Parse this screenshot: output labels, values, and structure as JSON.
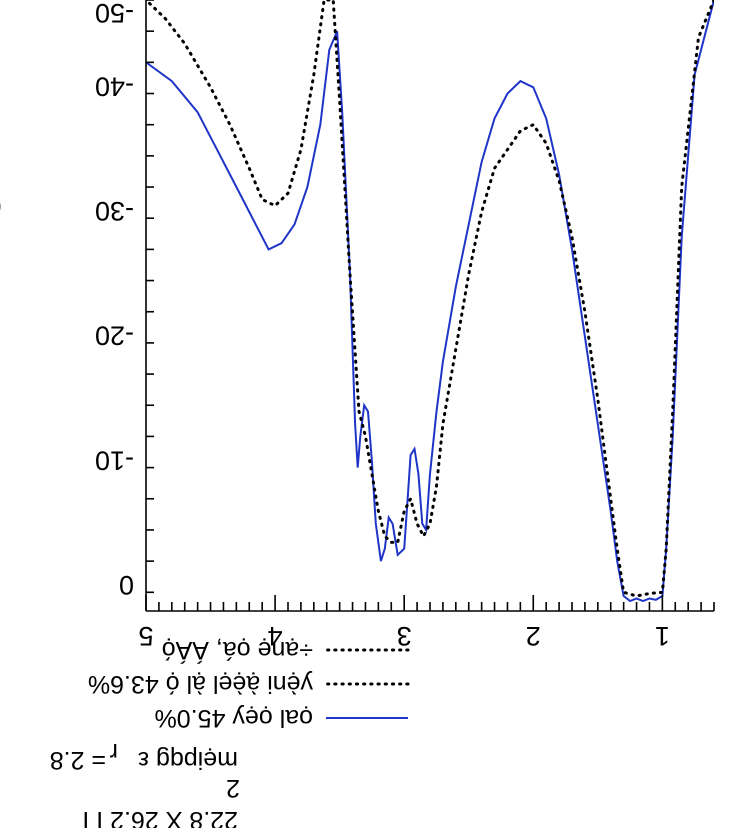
{
  "chart_data": {
    "type": "line",
    "orientation": "rotated 180 degrees",
    "xlim": [
      0.6,
      5
    ],
    "ylim": [
      -47,
      2
    ],
    "x_ticks": [
      1,
      2,
      3,
      4,
      5
    ],
    "x_tick_labels": [
      "1",
      "2",
      "3",
      "4",
      "5"
    ],
    "y_ticks": [
      0,
      -10,
      -20,
      -30,
      -40,
      -50
    ],
    "y_tick_labels": [
      "0",
      "-10",
      "-20",
      "-30",
      "-40",
      "-50"
    ],
    "legend_position": "bottom",
    "series": [
      {
        "name": "ọal ọẹy 45.0%",
        "color": "#1f35c8",
        "style": "solid",
        "points": [
          [
            0.6,
            -47
          ],
          [
            0.75,
            -41
          ],
          [
            0.85,
            -28
          ],
          [
            0.92,
            -12
          ],
          [
            0.97,
            -3
          ],
          [
            1.0,
            0.8
          ],
          [
            1.05,
            1.1
          ],
          [
            1.1,
            1.0
          ],
          [
            1.15,
            1.2
          ],
          [
            1.2,
            1.0
          ],
          [
            1.25,
            1.2
          ],
          [
            1.3,
            0.8
          ],
          [
            1.35,
            -2
          ],
          [
            1.4,
            -6
          ],
          [
            1.5,
            -13
          ],
          [
            1.6,
            -20
          ],
          [
            1.7,
            -27
          ],
          [
            1.8,
            -33
          ],
          [
            1.9,
            -37.5
          ],
          [
            2.0,
            -40
          ],
          [
            2.1,
            -40.5
          ],
          [
            2.2,
            -39.5
          ],
          [
            2.3,
            -37.5
          ],
          [
            2.4,
            -34
          ],
          [
            2.5,
            -29
          ],
          [
            2.6,
            -24
          ],
          [
            2.7,
            -18
          ],
          [
            2.75,
            -14
          ],
          [
            2.8,
            -9
          ],
          [
            2.83,
            -4.5
          ],
          [
            2.86,
            -5
          ],
          [
            2.89,
            -9
          ],
          [
            2.92,
            -11
          ],
          [
            2.95,
            -10.5
          ],
          [
            2.98,
            -6
          ],
          [
            3.0,
            -3
          ],
          [
            3.05,
            -2.5
          ],
          [
            3.09,
            -5
          ],
          [
            3.12,
            -5.5
          ],
          [
            3.15,
            -3
          ],
          [
            3.18,
            -2
          ],
          [
            3.22,
            -5
          ],
          [
            3.25,
            -10
          ],
          [
            3.28,
            -14
          ],
          [
            3.31,
            -14.5
          ],
          [
            3.34,
            -12
          ],
          [
            3.36,
            -9.5
          ],
          [
            3.38,
            -13
          ],
          [
            3.42,
            -25
          ],
          [
            3.48,
            -38
          ],
          [
            3.52,
            -44.5
          ],
          [
            3.58,
            -43
          ],
          [
            3.65,
            -37
          ],
          [
            3.75,
            -32
          ],
          [
            3.85,
            -29
          ],
          [
            3.95,
            -27.5
          ],
          [
            4.05,
            -27
          ],
          [
            4.15,
            -29
          ],
          [
            4.3,
            -32
          ],
          [
            4.45,
            -35
          ],
          [
            4.6,
            -38
          ],
          [
            4.8,
            -40.5
          ],
          [
            5.0,
            -42
          ]
        ]
      },
      {
        "name": "yẹ̀ni ạ̀ẹ̀ẹl ạ̀l ọ́ 43.6%",
        "color": "#000000",
        "style": "dotted",
        "points": [
          [
            0.6,
            -47
          ],
          [
            0.72,
            -44
          ],
          [
            0.85,
            -32
          ],
          [
            0.92,
            -14
          ],
          [
            0.97,
            -3
          ],
          [
            1.0,
            0.5
          ],
          [
            1.1,
            0.6
          ],
          [
            1.2,
            0.8
          ],
          [
            1.3,
            0.5
          ],
          [
            1.35,
            -3
          ],
          [
            1.4,
            -7
          ],
          [
            1.5,
            -15
          ],
          [
            1.6,
            -22
          ],
          [
            1.7,
            -28
          ],
          [
            1.8,
            -32.5
          ],
          [
            1.9,
            -35.5
          ],
          [
            2.0,
            -37
          ],
          [
            2.1,
            -36.5
          ],
          [
            2.2,
            -35
          ],
          [
            2.3,
            -33.5
          ],
          [
            2.4,
            -30
          ],
          [
            2.5,
            -25
          ],
          [
            2.6,
            -19
          ],
          [
            2.7,
            -13
          ],
          [
            2.75,
            -8
          ],
          [
            2.8,
            -5
          ],
          [
            2.85,
            -4
          ],
          [
            2.9,
            -5
          ],
          [
            2.95,
            -7
          ],
          [
            3.0,
            -6
          ],
          [
            3.05,
            -3.5
          ],
          [
            3.1,
            -3.5
          ],
          [
            3.15,
            -4
          ],
          [
            3.2,
            -6
          ],
          [
            3.25,
            -9
          ],
          [
            3.3,
            -12
          ],
          [
            3.35,
            -14
          ],
          [
            3.42,
            -25
          ],
          [
            3.5,
            -39
          ],
          [
            3.55,
            -47
          ],
          [
            3.62,
            -47
          ],
          [
            3.7,
            -41
          ],
          [
            3.8,
            -35
          ],
          [
            3.9,
            -31.5
          ],
          [
            4.0,
            -30.5
          ],
          [
            4.1,
            -31
          ],
          [
            4.2,
            -33.5
          ],
          [
            4.35,
            -37
          ],
          [
            4.5,
            -40
          ],
          [
            4.7,
            -43.5
          ],
          [
            4.85,
            -45.5
          ],
          [
            5.0,
            -47
          ]
        ]
      },
      {
        "name": "÷ạnẹ ọá, ÁÁọ́",
        "color": "#000000",
        "style": "dotted-short",
        "points": []
      }
    ]
  },
  "notes": {
    "line1": "mẹipqg ε",
    "line1_sub": "r",
    "line1_tail": "= 2.8",
    "line2": "22.8 X 26.2 I I",
    "line2_sup": "2"
  },
  "ylabel_fragment": "("
}
